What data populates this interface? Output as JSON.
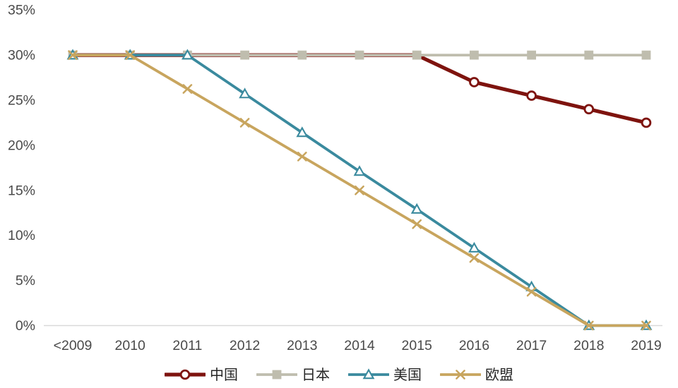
{
  "chart_data": {
    "type": "line",
    "title": "",
    "xlabel": "",
    "ylabel": "",
    "categories": [
      "<2009",
      "2010",
      "2011",
      "2012",
      "2013",
      "2014",
      "2015",
      "2016",
      "2017",
      "2018",
      "2019"
    ],
    "series": [
      {
        "name": "中国",
        "color": "#7E130E",
        "marker": "circle",
        "marker_fill": "#FFFFFF",
        "line_width": 5.2,
        "markers_from_index": 7,
        "values": [
          30,
          30,
          30,
          30,
          30,
          30,
          30,
          27,
          25.5,
          24,
          22.5
        ]
      },
      {
        "name": "日本",
        "color": "#BFBDAE",
        "marker": "square",
        "marker_fill": "#BFBDAE",
        "line_width": 3.8,
        "markers_from_index": 0,
        "values": [
          30,
          30,
          30,
          30,
          30,
          30,
          30,
          30,
          30,
          30,
          30
        ]
      },
      {
        "name": "美国",
        "color": "#3A8A9E",
        "marker": "triangle",
        "marker_fill": "#FFFFFF",
        "line_width": 3.8,
        "markers_from_index": 0,
        "values": [
          30,
          30,
          30,
          25.7,
          21.4,
          17.1,
          12.9,
          8.6,
          4.3,
          0,
          0
        ]
      },
      {
        "name": "欧盟",
        "color": "#C8A55E",
        "marker": "x",
        "marker_fill": "#C8A55E",
        "line_width": 3.8,
        "markers_from_index": 0,
        "values": [
          30,
          30,
          26.25,
          22.5,
          18.75,
          15,
          11.25,
          7.5,
          3.75,
          0,
          0
        ]
      }
    ],
    "ylim": [
      0,
      35
    ],
    "y_tick_step": 5,
    "y_tick_labels": [
      "0%",
      "5%",
      "10%",
      "15%",
      "20%",
      "25%",
      "30%",
      "35%"
    ],
    "grid": false,
    "legend_position": "bottom",
    "axis": {
      "baseline_color": "#D9D9D9",
      "tick_label_color": "#4A4A4A"
    }
  }
}
